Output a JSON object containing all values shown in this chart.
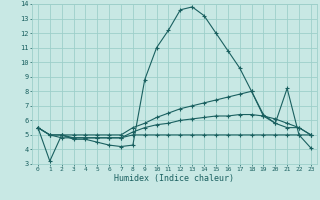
{
  "xlabel": "Humidex (Indice chaleur)",
  "bg_color": "#c8e8e4",
  "grid_color": "#9dcfca",
  "line_color": "#1a6060",
  "x_values": [
    0,
    1,
    2,
    3,
    4,
    5,
    6,
    7,
    8,
    9,
    10,
    11,
    12,
    13,
    14,
    15,
    16,
    17,
    18,
    19,
    20,
    21,
    22,
    23
  ],
  "series1": [
    5.5,
    3.2,
    5.0,
    4.7,
    4.7,
    4.5,
    4.3,
    4.2,
    4.3,
    8.8,
    11.0,
    12.2,
    13.6,
    13.8,
    13.2,
    12.0,
    10.8,
    9.6,
    8.0,
    6.3,
    5.8,
    8.2,
    5.0,
    4.1
  ],
  "series2": [
    5.5,
    5.0,
    5.0,
    5.0,
    5.0,
    5.0,
    5.0,
    5.0,
    5.5,
    5.8,
    6.2,
    6.5,
    6.8,
    7.0,
    7.2,
    7.4,
    7.6,
    7.8,
    8.0,
    6.4,
    5.8,
    5.5,
    5.5,
    5.0
  ],
  "series3": [
    5.5,
    5.0,
    5.0,
    4.8,
    4.8,
    4.8,
    4.8,
    4.8,
    5.2,
    5.5,
    5.7,
    5.8,
    6.0,
    6.1,
    6.2,
    6.3,
    6.3,
    6.4,
    6.4,
    6.3,
    6.1,
    5.8,
    5.5,
    5.0
  ],
  "series4": [
    5.5,
    5.0,
    4.8,
    4.8,
    4.8,
    4.8,
    4.8,
    4.8,
    5.0,
    5.0,
    5.0,
    5.0,
    5.0,
    5.0,
    5.0,
    5.0,
    5.0,
    5.0,
    5.0,
    5.0,
    5.0,
    5.0,
    5.0,
    5.0
  ],
  "ylim": [
    3,
    14
  ],
  "xlim": [
    -0.5,
    23.5
  ],
  "yticks": [
    3,
    4,
    5,
    6,
    7,
    8,
    9,
    10,
    11,
    12,
    13,
    14
  ],
  "xticks": [
    0,
    1,
    2,
    3,
    4,
    5,
    6,
    7,
    8,
    9,
    10,
    11,
    12,
    13,
    14,
    15,
    16,
    17,
    18,
    19,
    20,
    21,
    22,
    23
  ]
}
